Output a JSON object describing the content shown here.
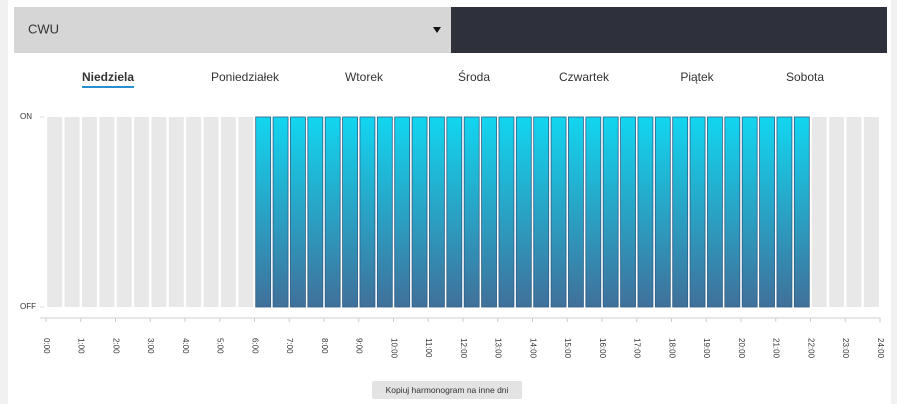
{
  "dropdown": {
    "value": "CWU"
  },
  "tabs": [
    "Niedziela",
    "Poniedziałek",
    "Wtorek",
    "Środa",
    "Czwartek",
    "Piątek",
    "Sobota"
  ],
  "selected_tab": 0,
  "chart_data": {
    "type": "bar",
    "x": [
      0,
      0.5,
      1,
      1.5,
      2,
      2.5,
      3,
      3.5,
      4,
      4.5,
      5,
      5.5,
      6,
      6.5,
      7,
      7.5,
      8,
      8.5,
      9,
      9.5,
      10,
      10.5,
      11,
      11.5,
      12,
      12.5,
      13,
      13.5,
      14,
      14.5,
      15,
      15.5,
      16,
      16.5,
      17,
      17.5,
      18,
      18.5,
      19,
      19.5,
      20,
      20.5,
      21,
      21.5,
      22,
      22.5,
      23,
      23.5
    ],
    "values": [
      0,
      0,
      0,
      0,
      0,
      0,
      0,
      0,
      0,
      0,
      0,
      0,
      1,
      1,
      1,
      1,
      1,
      1,
      1,
      1,
      1,
      1,
      1,
      1,
      1,
      1,
      1,
      1,
      1,
      1,
      1,
      1,
      1,
      1,
      1,
      1,
      1,
      1,
      1,
      1,
      1,
      1,
      1,
      1,
      0,
      0,
      0,
      0
    ],
    "ylim": [
      0,
      1
    ],
    "yticks": [
      {
        "value": 1,
        "label": "ON"
      },
      {
        "value": 0,
        "label": "OFF"
      }
    ],
    "xlim": [
      0,
      24
    ],
    "xticks": [
      {
        "value": 0,
        "label": "0:00"
      },
      {
        "value": 1,
        "label": "1:00"
      },
      {
        "value": 2,
        "label": "2:00"
      },
      {
        "value": 3,
        "label": "3:00"
      },
      {
        "value": 4,
        "label": "4:00"
      },
      {
        "value": 5,
        "label": "5:00"
      },
      {
        "value": 6,
        "label": "6:00"
      },
      {
        "value": 7,
        "label": "7:00"
      },
      {
        "value": 8,
        "label": "8:00"
      },
      {
        "value": 9,
        "label": "9:00"
      },
      {
        "value": 10,
        "label": "10:00"
      },
      {
        "value": 11,
        "label": "11:00"
      },
      {
        "value": 12,
        "label": "12:00"
      },
      {
        "value": 13,
        "label": "13:00"
      },
      {
        "value": 14,
        "label": "14:00"
      },
      {
        "value": 15,
        "label": "15:00"
      },
      {
        "value": 16,
        "label": "16:00"
      },
      {
        "value": 17,
        "label": "17:00"
      },
      {
        "value": 18,
        "label": "18:00"
      },
      {
        "value": 19,
        "label": "19:00"
      },
      {
        "value": 20,
        "label": "20:00"
      },
      {
        "value": 21,
        "label": "21:00"
      },
      {
        "value": 22,
        "label": "22:00"
      },
      {
        "value": 23,
        "label": "23:00"
      },
      {
        "value": 24,
        "label": "24:00"
      }
    ]
  },
  "button": {
    "label": "Kopiuj harmonogram na inne dni"
  }
}
